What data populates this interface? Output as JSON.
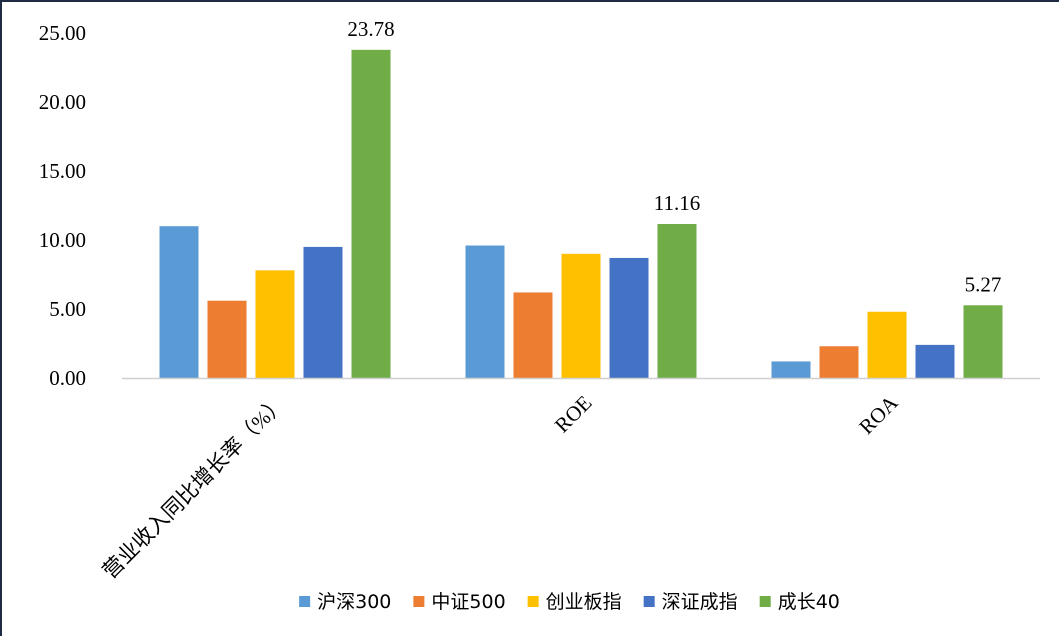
{
  "chart_data": {
    "type": "bar",
    "categories": [
      "营业收入同比增长率（%）",
      "ROE",
      "ROA"
    ],
    "series": [
      {
        "name": "沪深300",
        "color": "#5B9BD5",
        "values": [
          11.0,
          9.6,
          1.2
        ]
      },
      {
        "name": "中证500",
        "color": "#ED7D31",
        "values": [
          5.6,
          6.2,
          2.3
        ]
      },
      {
        "name": "创业板指",
        "color": "#FFC000",
        "values": [
          7.8,
          9.0,
          4.8
        ]
      },
      {
        "name": "深证成指",
        "color": "#4472C4",
        "values": [
          9.5,
          8.7,
          2.4
        ]
      },
      {
        "name": "成长40",
        "color": "#70AD47",
        "values": [
          23.78,
          11.16,
          5.27
        ]
      }
    ],
    "data_labels": [
      {
        "series": "成长40",
        "category": "营业收入同比增长率（%）",
        "text": "23.78"
      },
      {
        "series": "成长40",
        "category": "ROE",
        "text": "11.16"
      },
      {
        "series": "成长40",
        "category": "ROA",
        "text": "5.27"
      }
    ],
    "y_ticks": [
      "0.00",
      "5.00",
      "10.00",
      "15.00",
      "20.00",
      "25.00"
    ],
    "ylim": [
      0,
      25
    ],
    "title": "",
    "xlabel": "",
    "ylabel": "",
    "grid": false,
    "legend_position": "bottom"
  }
}
